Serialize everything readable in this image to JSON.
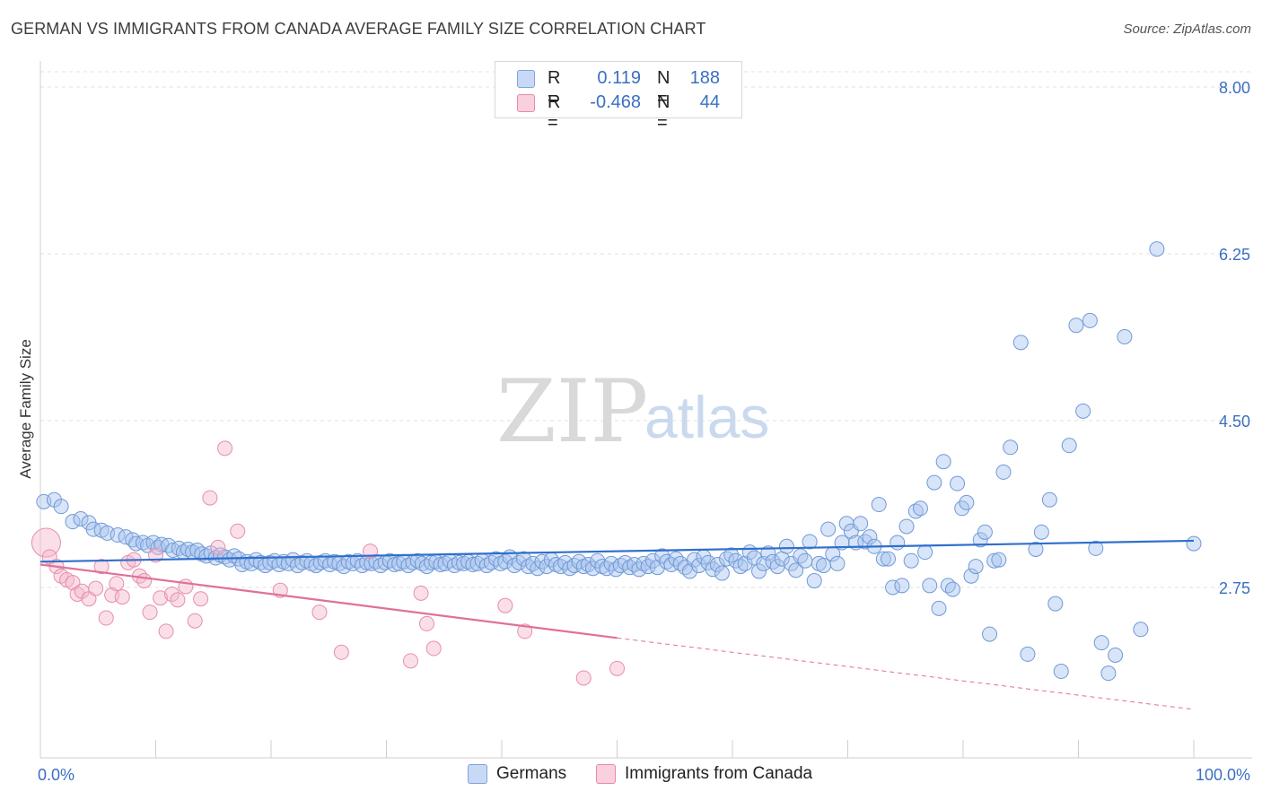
{
  "header": {
    "title": "GERMAN VS IMMIGRANTS FROM CANADA AVERAGE FAMILY SIZE CORRELATION CHART",
    "source": "Source: ZipAtlas.com"
  },
  "watermark": {
    "zip": "ZIP",
    "atlas": "atlas"
  },
  "legend": {
    "rows": [
      {
        "r_label": "R =",
        "r_value": "0.119",
        "n_label": "N =",
        "n_value": "188",
        "color": "#a9c4ee"
      },
      {
        "r_label": "R =",
        "r_value": "-0.468",
        "n_label": "N =",
        "n_value": "44",
        "color": "#f5b8cb"
      }
    ]
  },
  "bottom_legend": {
    "items": [
      {
        "label": "Germans",
        "color": "#a9c4ee"
      },
      {
        "label": "Immigrants from Canada",
        "color": "#f5b8cb"
      }
    ]
  },
  "chart_data": {
    "type": "scatter",
    "title": "GERMAN VS IMMIGRANTS FROM CANADA AVERAGE FAMILY SIZE CORRELATION CHART",
    "xlabel": "",
    "ylabel": "Average Family Size",
    "xlim": [
      0,
      100
    ],
    "ylim": [
      1.3,
      8.3
    ],
    "y_ticks": [
      2.75,
      4.5,
      6.25,
      8.0
    ],
    "y_tick_labels": [
      "2.75",
      "4.50",
      "6.25",
      "8.00"
    ],
    "x_tick_labels": [
      "0.0%",
      "100.0%"
    ],
    "grid": "horizontal dashed",
    "colors": {
      "germans": "#a9c4ee",
      "germans_line": "#2f6fcc",
      "canada": "#f5b8cb",
      "canada_line": "#e0709a"
    },
    "series": [
      {
        "name": "Germans",
        "trend": {
          "x0": 0,
          "y0": 3.02,
          "x1": 100,
          "y1": 3.24
        },
        "points": [
          [
            0.3,
            3.65
          ],
          [
            1.2,
            3.67
          ],
          [
            1.8,
            3.6
          ],
          [
            2.8,
            3.44
          ],
          [
            3.5,
            3.47
          ],
          [
            4.2,
            3.43
          ],
          [
            4.6,
            3.36
          ],
          [
            5.3,
            3.35
          ],
          [
            5.8,
            3.32
          ],
          [
            6.7,
            3.3
          ],
          [
            7.4,
            3.28
          ],
          [
            8.0,
            3.25
          ],
          [
            8.3,
            3.21
          ],
          [
            8.9,
            3.22
          ],
          [
            9.3,
            3.19
          ],
          [
            9.8,
            3.22
          ],
          [
            10.2,
            3.17
          ],
          [
            10.5,
            3.2
          ],
          [
            11.1,
            3.19
          ],
          [
            11.5,
            3.14
          ],
          [
            12.0,
            3.16
          ],
          [
            12.4,
            3.12
          ],
          [
            12.8,
            3.15
          ],
          [
            13.2,
            3.12
          ],
          [
            13.6,
            3.14
          ],
          [
            14.0,
            3.1
          ],
          [
            14.4,
            3.08
          ],
          [
            14.8,
            3.11
          ],
          [
            15.2,
            3.06
          ],
          [
            15.6,
            3.09
          ],
          [
            16.0,
            3.07
          ],
          [
            16.4,
            3.04
          ],
          [
            16.8,
            3.08
          ],
          [
            17.2,
            3.05
          ],
          [
            17.5,
            2.99
          ],
          [
            17.9,
            3.02
          ],
          [
            18.3,
            3.0
          ],
          [
            18.7,
            3.04
          ],
          [
            19.1,
            3.01
          ],
          [
            19.5,
            2.98
          ],
          [
            19.9,
            3.01
          ],
          [
            20.3,
            3.03
          ],
          [
            20.7,
            2.99
          ],
          [
            21.1,
            3.02
          ],
          [
            21.5,
            3.0
          ],
          [
            21.9,
            3.04
          ],
          [
            22.3,
            2.98
          ],
          [
            22.7,
            3.01
          ],
          [
            23.1,
            3.03
          ],
          [
            23.5,
            3.0
          ],
          [
            23.9,
            2.98
          ],
          [
            24.3,
            3.01
          ],
          [
            24.7,
            3.03
          ],
          [
            25.1,
            2.99
          ],
          [
            25.5,
            3.02
          ],
          [
            25.9,
            3.0
          ],
          [
            26.3,
            2.97
          ],
          [
            26.7,
            3.02
          ],
          [
            27.1,
            3.0
          ],
          [
            27.5,
            3.03
          ],
          [
            27.9,
            2.98
          ],
          [
            28.3,
            3.01
          ],
          [
            28.7,
            3.0
          ],
          [
            29.1,
            3.02
          ],
          [
            29.5,
            2.98
          ],
          [
            29.9,
            3.01
          ],
          [
            30.3,
            3.03
          ],
          [
            30.7,
            2.99
          ],
          [
            31.1,
            3.0
          ],
          [
            31.5,
            3.02
          ],
          [
            31.9,
            2.98
          ],
          [
            32.3,
            3.01
          ],
          [
            32.7,
            3.03
          ],
          [
            33.1,
            3.0
          ],
          [
            33.5,
            2.97
          ],
          [
            33.9,
            3.01
          ],
          [
            34.3,
            3.02
          ],
          [
            34.7,
            2.99
          ],
          [
            35.1,
            3.0
          ],
          [
            35.5,
            3.03
          ],
          [
            35.9,
            2.98
          ],
          [
            36.3,
            3.01
          ],
          [
            36.7,
            3.0
          ],
          [
            37.1,
            3.02
          ],
          [
            37.5,
            2.99
          ],
          [
            37.9,
            3.0
          ],
          [
            38.3,
            3.03
          ],
          [
            38.7,
            2.98
          ],
          [
            39.1,
            3.01
          ],
          [
            39.5,
            3.05
          ],
          [
            39.9,
            3.0
          ],
          [
            40.3,
            3.02
          ],
          [
            40.7,
            3.07
          ],
          [
            41.1,
            2.98
          ],
          [
            41.5,
            3.01
          ],
          [
            41.9,
            3.05
          ],
          [
            42.3,
            2.97
          ],
          [
            42.7,
            3.0
          ],
          [
            43.1,
            2.95
          ],
          [
            43.5,
            3.02
          ],
          [
            43.9,
            2.97
          ],
          [
            44.3,
            3.04
          ],
          [
            44.7,
            2.99
          ],
          [
            45.1,
            2.97
          ],
          [
            45.5,
            3.01
          ],
          [
            45.9,
            2.95
          ],
          [
            46.3,
            2.98
          ],
          [
            46.7,
            3.02
          ],
          [
            47.1,
            2.97
          ],
          [
            47.5,
            2.99
          ],
          [
            47.9,
            2.95
          ],
          [
            48.3,
            3.03
          ],
          [
            48.7,
            2.97
          ],
          [
            49.1,
            2.95
          ],
          [
            49.5,
            3.0
          ],
          [
            49.9,
            2.94
          ],
          [
            50.3,
            2.98
          ],
          [
            50.7,
            3.01
          ],
          [
            51.1,
            2.96
          ],
          [
            51.5,
            2.99
          ],
          [
            51.9,
            2.94
          ],
          [
            52.3,
            3.0
          ],
          [
            52.7,
            2.97
          ],
          [
            53.1,
            3.03
          ],
          [
            53.5,
            2.96
          ],
          [
            53.9,
            3.08
          ],
          [
            54.3,
            3.02
          ],
          [
            54.7,
            2.99
          ],
          [
            55.1,
            3.05
          ],
          [
            55.5,
            3.0
          ],
          [
            55.9,
            2.96
          ],
          [
            56.3,
            2.92
          ],
          [
            56.7,
            3.04
          ],
          [
            57.1,
            2.98
          ],
          [
            57.5,
            3.07
          ],
          [
            57.9,
            3.01
          ],
          [
            58.3,
            2.94
          ],
          [
            58.7,
            2.99
          ],
          [
            59.1,
            2.9
          ],
          [
            59.5,
            3.05
          ],
          [
            59.9,
            3.09
          ],
          [
            60.3,
            3.03
          ],
          [
            60.7,
            2.97
          ],
          [
            61.1,
            3.0
          ],
          [
            61.5,
            3.12
          ],
          [
            61.9,
            3.06
          ],
          [
            62.3,
            2.92
          ],
          [
            62.7,
            3.0
          ],
          [
            63.1,
            3.11
          ],
          [
            63.5,
            3.02
          ],
          [
            63.9,
            2.97
          ],
          [
            64.3,
            3.05
          ],
          [
            64.7,
            3.18
          ],
          [
            65.1,
            3.0
          ],
          [
            65.5,
            2.93
          ],
          [
            65.9,
            3.08
          ],
          [
            66.3,
            3.03
          ],
          [
            66.7,
            3.23
          ],
          [
            67.1,
            2.82
          ],
          [
            67.5,
            3.0
          ],
          [
            67.9,
            2.98
          ],
          [
            68.3,
            3.36
          ],
          [
            68.7,
            3.1
          ],
          [
            69.1,
            3.0
          ],
          [
            69.5,
            3.22
          ],
          [
            69.9,
            3.42
          ],
          [
            70.3,
            3.34
          ],
          [
            70.7,
            3.22
          ],
          [
            71.1,
            3.42
          ],
          [
            71.5,
            3.23
          ],
          [
            71.9,
            3.28
          ],
          [
            72.3,
            3.18
          ],
          [
            72.7,
            3.62
          ],
          [
            73.1,
            3.05
          ],
          [
            73.5,
            3.05
          ],
          [
            73.9,
            2.75
          ],
          [
            74.3,
            3.22
          ],
          [
            74.7,
            2.77
          ],
          [
            75.1,
            3.39
          ],
          [
            75.5,
            3.03
          ],
          [
            75.9,
            3.55
          ],
          [
            76.3,
            3.58
          ],
          [
            76.7,
            3.12
          ],
          [
            77.1,
            2.77
          ],
          [
            77.5,
            3.85
          ],
          [
            77.9,
            2.53
          ],
          [
            78.3,
            4.07
          ],
          [
            78.7,
            2.77
          ],
          [
            79.1,
            2.73
          ],
          [
            79.5,
            3.84
          ],
          [
            79.9,
            3.58
          ],
          [
            80.3,
            3.64
          ],
          [
            80.7,
            2.87
          ],
          [
            81.1,
            2.97
          ],
          [
            81.5,
            3.25
          ],
          [
            81.9,
            3.33
          ],
          [
            82.3,
            2.26
          ],
          [
            82.7,
            3.03
          ],
          [
            83.1,
            3.04
          ],
          [
            83.5,
            3.96
          ],
          [
            84.1,
            4.22
          ],
          [
            85.0,
            5.32
          ],
          [
            85.6,
            2.05
          ],
          [
            86.3,
            3.15
          ],
          [
            86.8,
            3.33
          ],
          [
            87.5,
            3.67
          ],
          [
            88.0,
            2.58
          ],
          [
            88.5,
            1.87
          ],
          [
            89.2,
            4.24
          ],
          [
            89.8,
            5.5
          ],
          [
            90.4,
            4.6
          ],
          [
            91.0,
            5.55
          ],
          [
            91.5,
            3.16
          ],
          [
            92.0,
            2.17
          ],
          [
            92.6,
            1.85
          ],
          [
            93.2,
            2.04
          ],
          [
            94.0,
            5.38
          ],
          [
            95.4,
            2.31
          ],
          [
            96.8,
            6.3
          ],
          [
            100.0,
            3.21
          ]
        ]
      },
      {
        "name": "Immigrants from Canada",
        "trend": {
          "x0": 0,
          "y0": 2.99,
          "x1": 50,
          "y1": 2.22,
          "dash_to_x": 100,
          "dash_to_y": 1.47
        },
        "points": [
          [
            0.5,
            3.22
          ],
          [
            0.8,
            3.07
          ],
          [
            1.4,
            2.97
          ],
          [
            1.8,
            2.87
          ],
          [
            2.3,
            2.83
          ],
          [
            2.8,
            2.8
          ],
          [
            3.2,
            2.68
          ],
          [
            3.6,
            2.71
          ],
          [
            4.2,
            2.63
          ],
          [
            4.8,
            2.74
          ],
          [
            5.3,
            2.97
          ],
          [
            5.7,
            2.43
          ],
          [
            6.2,
            2.67
          ],
          [
            6.6,
            2.79
          ],
          [
            7.1,
            2.65
          ],
          [
            7.6,
            3.01
          ],
          [
            8.1,
            3.04
          ],
          [
            8.6,
            2.87
          ],
          [
            9.0,
            2.82
          ],
          [
            9.5,
            2.49
          ],
          [
            10.0,
            3.09
          ],
          [
            10.4,
            2.64
          ],
          [
            10.9,
            2.29
          ],
          [
            11.4,
            2.68
          ],
          [
            11.9,
            2.62
          ],
          [
            12.6,
            2.76
          ],
          [
            13.4,
            2.4
          ],
          [
            13.9,
            2.63
          ],
          [
            14.7,
            3.69
          ],
          [
            15.4,
            3.17
          ],
          [
            16.0,
            4.21
          ],
          [
            17.1,
            3.34
          ],
          [
            20.8,
            2.72
          ],
          [
            24.2,
            2.49
          ],
          [
            26.1,
            2.07
          ],
          [
            28.6,
            3.13
          ],
          [
            32.1,
            1.98
          ],
          [
            33.0,
            2.69
          ],
          [
            33.5,
            2.37
          ],
          [
            34.1,
            2.11
          ],
          [
            40.3,
            2.56
          ],
          [
            42.0,
            2.29
          ],
          [
            47.1,
            1.8
          ],
          [
            50.0,
            1.9
          ]
        ]
      }
    ]
  }
}
